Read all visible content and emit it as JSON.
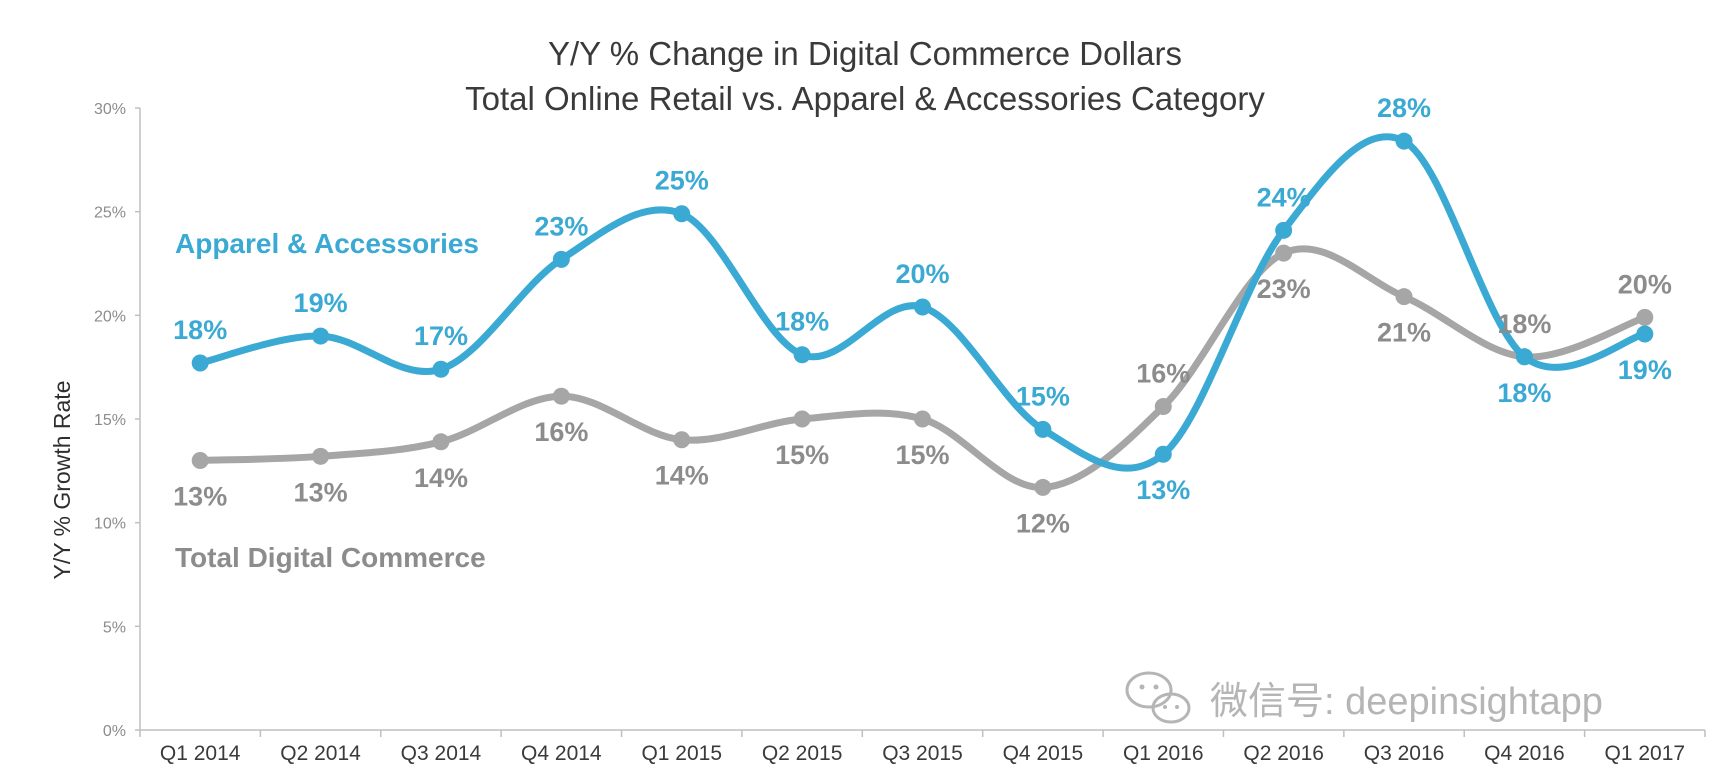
{
  "chart_data": {
    "type": "line",
    "title": "Y/Y % Change in Digital Commerce Dollars",
    "subtitle": "Total Online Retail vs. Apparel & Accessories Category",
    "ylabel": "Y/Y % Growth Rate",
    "xlabel": "",
    "ylim": [
      0,
      30
    ],
    "yticks": [
      "0%",
      "5%",
      "10%",
      "15%",
      "20%",
      "25%",
      "30%"
    ],
    "categories": [
      "Q1 2014",
      "Q2 2014",
      "Q3 2014",
      "Q4 2014",
      "Q1 2015",
      "Q2 2015",
      "Q3 2015",
      "Q4 2015",
      "Q1 2016",
      "Q2 2016",
      "Q3 2016",
      "Q4 2016",
      "Q1 2017"
    ],
    "series": [
      {
        "name": "Apparel & Accessories",
        "color": "#3aa9d3",
        "values": [
          17.7,
          19.0,
          17.4,
          22.7,
          24.9,
          18.1,
          20.4,
          14.5,
          13.3,
          24.1,
          28.4,
          18.0,
          19.1
        ],
        "labels": [
          "18%",
          "19%",
          "17%",
          "23%",
          "25%",
          "18%",
          "20%",
          "15%",
          "13%",
          "24%",
          "28%",
          "18%",
          "19%"
        ]
      },
      {
        "name": "Total Digital Commerce",
        "color": "#a6a6a6",
        "values": [
          13.0,
          13.2,
          13.9,
          16.1,
          14.0,
          15.0,
          15.0,
          11.7,
          15.6,
          23.0,
          20.9,
          18.0,
          19.9
        ],
        "labels": [
          "13%",
          "13%",
          "14%",
          "16%",
          "14%",
          "15%",
          "15%",
          "12%",
          "16%",
          "23%",
          "21%",
          "18%",
          "20%"
        ]
      }
    ],
    "grid": false,
    "legend": "inline"
  },
  "watermark": "微信号: deepinsightapp"
}
